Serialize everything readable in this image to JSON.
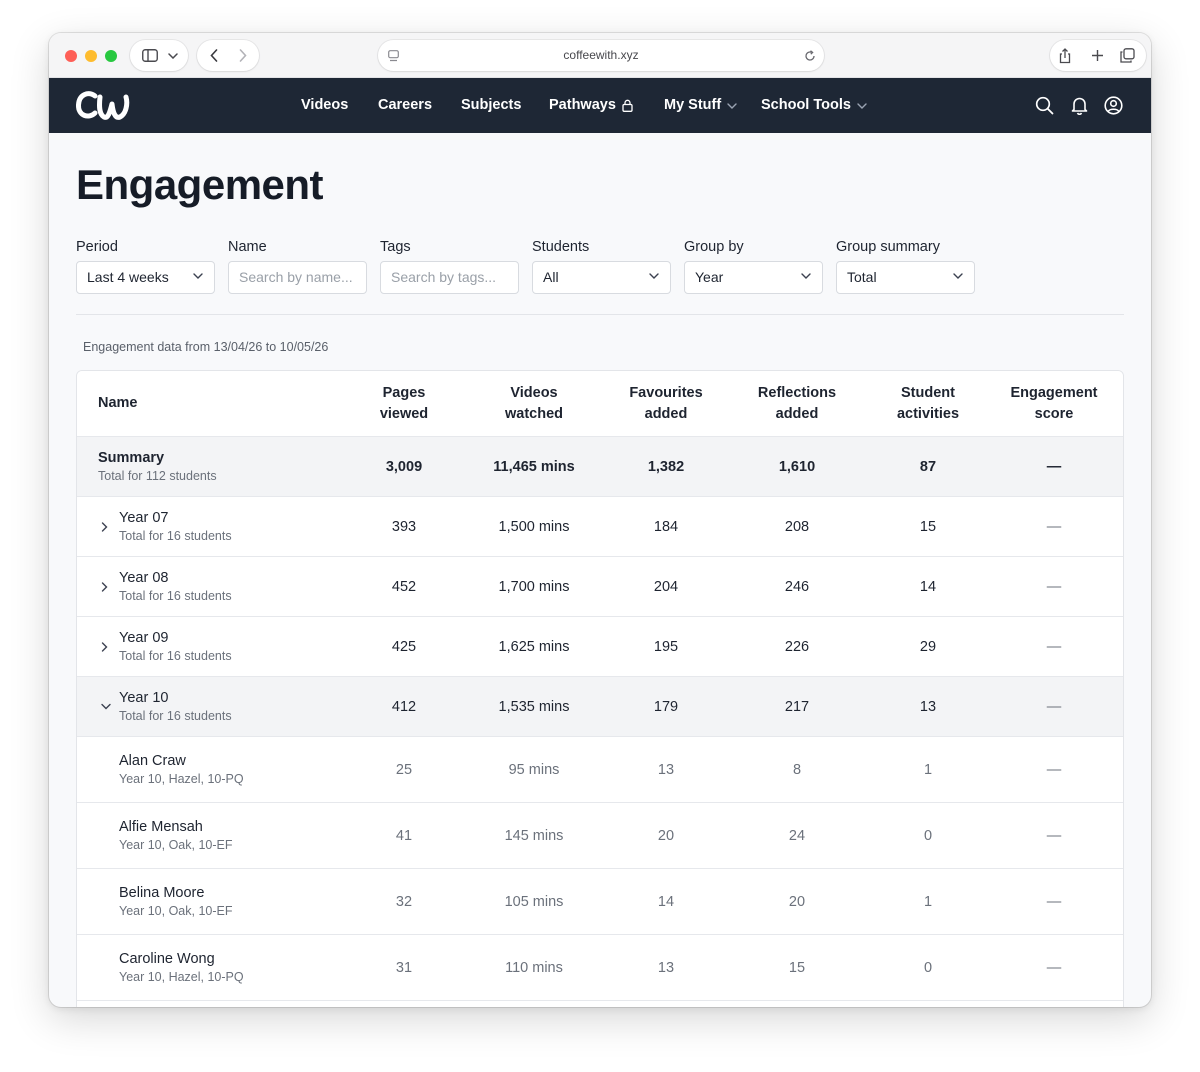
{
  "browser": {
    "url": "coffeewith.xyz"
  },
  "header": {
    "logo_text": "CW",
    "nav": [
      {
        "label": "Videos"
      },
      {
        "label": "Careers"
      },
      {
        "label": "Subjects"
      },
      {
        "label": "Pathways"
      },
      {
        "label": "My Stuff"
      },
      {
        "label": "School Tools"
      }
    ]
  },
  "page": {
    "title": "Engagement",
    "range_text": "Engagement data from 13/04/26 to 10/05/26"
  },
  "filters": {
    "period": {
      "label": "Period",
      "value": "Last 4 weeks"
    },
    "name": {
      "label": "Name",
      "placeholder": "Search by name..."
    },
    "tags": {
      "label": "Tags",
      "placeholder": "Search by tags..."
    },
    "students": {
      "label": "Students",
      "value": "All"
    },
    "group_by": {
      "label": "Group by",
      "value": "Year"
    },
    "group_summary": {
      "label": "Group summary",
      "value": "Total"
    }
  },
  "table": {
    "columns": [
      {
        "line1": "Name",
        "line2": ""
      },
      {
        "line1": "Pages",
        "line2": "viewed"
      },
      {
        "line1": "Videos",
        "line2": "watched"
      },
      {
        "line1": "Favourites",
        "line2": "added"
      },
      {
        "line1": "Reflections",
        "line2": "added"
      },
      {
        "line1": "Student",
        "line2": "activities"
      },
      {
        "line1": "Engagement",
        "line2": "score"
      }
    ],
    "summary": {
      "name": "Summary",
      "sub": "Total for 112 students",
      "pages": "3,009",
      "videos": "11,465 mins",
      "favourites": "1,382",
      "reflections": "1,610",
      "activities": "87",
      "score": "—"
    },
    "groups": [
      {
        "name": "Year 07",
        "sub": "Total for 16 students",
        "pages": "393",
        "videos": "1,500 mins",
        "favourites": "184",
        "reflections": "208",
        "activities": "15",
        "score": "—"
      },
      {
        "name": "Year 08",
        "sub": "Total for 16 students",
        "pages": "452",
        "videos": "1,700 mins",
        "favourites": "204",
        "reflections": "246",
        "activities": "14",
        "score": "—"
      },
      {
        "name": "Year 09",
        "sub": "Total for 16 students",
        "pages": "425",
        "videos": "1,625 mins",
        "favourites": "195",
        "reflections": "226",
        "activities": "29",
        "score": "—"
      },
      {
        "name": "Year 10",
        "sub": "Total for 16 students",
        "pages": "412",
        "videos": "1,535 mins",
        "favourites": "179",
        "reflections": "217",
        "activities": "13",
        "score": "—"
      }
    ],
    "students": [
      {
        "name": "Alan Craw",
        "sub": "Year 10, Hazel, 10-PQ",
        "pages": "25",
        "videos": "95 mins",
        "favourites": "13",
        "reflections": "8",
        "activities": "1",
        "score": "—"
      },
      {
        "name": "Alfie Mensah",
        "sub": "Year 10, Oak, 10-EF",
        "pages": "41",
        "videos": "145 mins",
        "favourites": "20",
        "reflections": "24",
        "activities": "0",
        "score": "—"
      },
      {
        "name": "Belina Moore",
        "sub": "Year 10, Oak, 10-EF",
        "pages": "32",
        "videos": "105 mins",
        "favourites": "14",
        "reflections": "20",
        "activities": "1",
        "score": "—"
      },
      {
        "name": "Caroline Wong",
        "sub": "Year 10, Hazel, 10-PQ",
        "pages": "31",
        "videos": "110 mins",
        "favourites": "13",
        "reflections": "15",
        "activities": "0",
        "score": "—"
      }
    ]
  }
}
